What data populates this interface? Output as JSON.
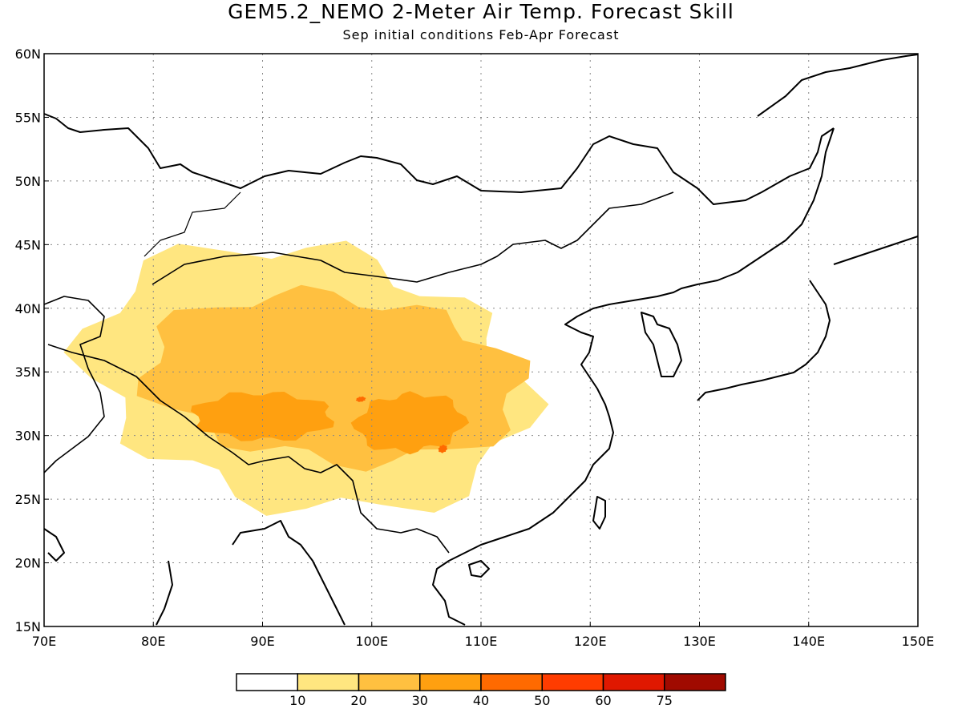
{
  "title": "GEM5.2_NEMO 2-Meter Air Temp. Forecast Skill",
  "subtitle": "Sep initial conditions  Feb-Apr Forecast",
  "chart_data": {
    "type": "heatmap",
    "lon_range": [
      70,
      150
    ],
    "lat_range": [
      15,
      60
    ],
    "x_ticks": [
      "70E",
      "80E",
      "90E",
      "100E",
      "110E",
      "120E",
      "130E",
      "140E",
      "150E"
    ],
    "y_ticks": [
      "15N",
      "20N",
      "25N",
      "30N",
      "35N",
      "40N",
      "45N",
      "50N",
      "55N",
      "60N"
    ],
    "grid": true,
    "colorbar": {
      "labels": [
        "10",
        "20",
        "30",
        "40",
        "50",
        "60",
        "75"
      ],
      "colors": [
        "#ffffff",
        "#ffe680",
        "#ffc040",
        "#ffa010",
        "#ff6a00",
        "#ff3c00",
        "#e01800",
        "#a00a00"
      ]
    },
    "skill_regions": [
      {
        "level": 1,
        "lon": [
          70,
          118
        ],
        "lat": [
          22,
          47
        ]
      },
      {
        "level": 2,
        "lon": [
          77,
          116
        ],
        "lat": [
          26,
          43
        ]
      },
      {
        "level": 3,
        "lon": [
          83,
          97
        ],
        "lat": [
          29,
          34
        ]
      },
      {
        "level": 3,
        "lon": [
          98,
          109
        ],
        "lat": [
          28,
          34
        ]
      },
      {
        "level": 4,
        "lon": [
          98.5,
          99.5
        ],
        "lat": [
          32.6,
          33.1
        ]
      },
      {
        "level": 4,
        "lon": [
          106,
          107
        ],
        "lat": [
          28.6,
          29.3
        ]
      }
    ]
  }
}
